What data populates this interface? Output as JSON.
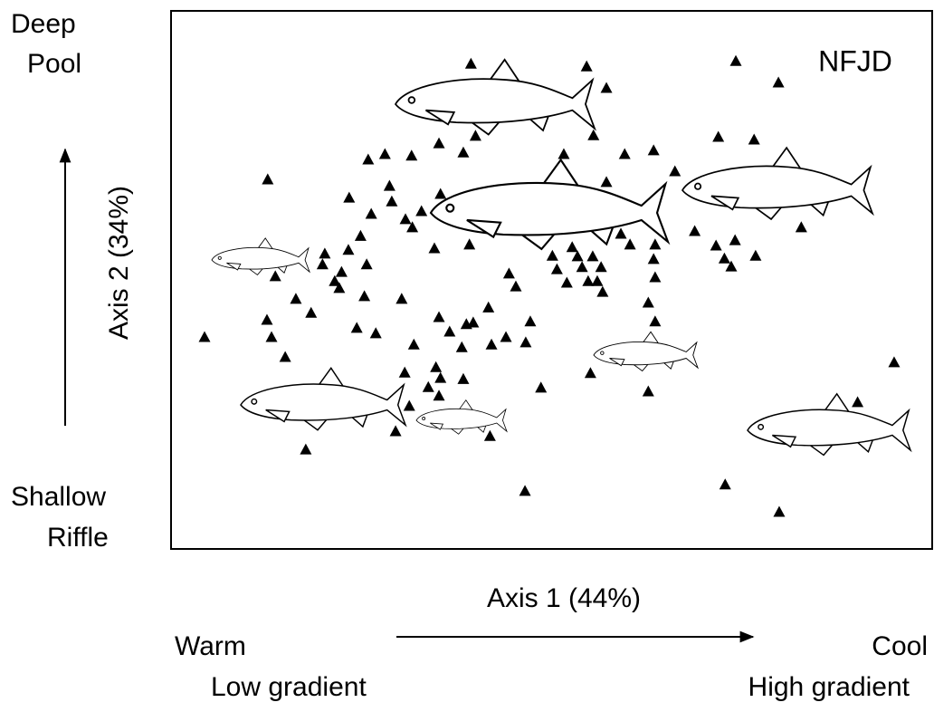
{
  "chart_data": {
    "type": "scatter",
    "annotation": "NFJD",
    "x_label": "Axis 1 (44%)",
    "y_label": "Axis 2 (34%)",
    "y_high_label": [
      "Deep",
      "Pool"
    ],
    "y_low_label": [
      "Shallow",
      "Riffle"
    ],
    "x_low_label": [
      "Warm",
      "Low gradient"
    ],
    "x_high_label": [
      "Cool",
      "High gradient"
    ],
    "xlim": [
      0,
      100
    ],
    "ylim": [
      0,
      100
    ],
    "color": "#000000",
    "x": [
      39.4,
      54.6,
      57.2,
      74.2,
      79.8,
      40.0,
      35.2,
      38.4,
      55.5,
      71.9,
      76.6,
      25.9,
      28.1,
      31.6,
      51.6,
      59.6,
      63.4,
      66.2,
      12.7,
      28.7,
      23.4,
      29.0,
      35.4,
      26.3,
      32.9,
      30.8,
      57.2,
      24.9,
      31.7,
      39.2,
      34.6,
      52.7,
      59.1,
      60.3,
      63.6,
      68.8,
      74.1,
      82.8,
      71.6,
      72.7,
      73.6,
      76.8,
      23.3,
      20.2,
      25.7,
      19.9,
      22.4,
      13.7,
      21.5,
      22.1,
      50.1,
      53.4,
      55.4,
      63.4,
      44.4,
      50.7,
      54.0,
      56.5,
      63.6,
      45.3,
      52.0,
      54.8,
      56.0,
      56.7,
      62.7,
      16.4,
      18.4,
      25.4,
      30.3,
      12.6,
      13.2,
      4.4,
      15.0,
      24.4,
      26.9,
      35.2,
      36.6,
      38.8,
      39.7,
      38.2,
      42.1,
      44.0,
      47.2,
      46.6,
      31.9,
      41.7,
      63.6,
      30.7,
      34.8,
      33.8,
      35.4,
      38.4,
      55.1,
      48.6,
      62.7,
      95.0,
      31.3,
      35.2,
      29.5,
      41.9,
      17.7,
      90.2,
      46.5,
      72.8,
      79.9
    ],
    "values": [
      90.2,
      89.7,
      85.7,
      90.7,
      86.7,
      76.8,
      75.4,
      73.7,
      76.9,
      76.6,
      76.1,
      72.4,
      73.4,
      73.1,
      73.4,
      73.4,
      74.1,
      70.2,
      68.7,
      67.5,
      65.3,
      64.6,
      66.0,
      62.3,
      62.8,
      61.3,
      68.2,
      58.2,
      59.8,
      56.6,
      55.9,
      56.1,
      58.6,
      56.6,
      56.6,
      59.1,
      57.4,
      59.8,
      56.4,
      54.0,
      52.5,
      54.5,
      55.6,
      54.9,
      52.9,
      52.9,
      51.5,
      50.7,
      49.8,
      48.5,
      54.5,
      54.4,
      54.4,
      53.9,
      51.2,
      52.0,
      52.4,
      52.4,
      50.5,
      48.8,
      49.5,
      49.8,
      49.8,
      47.8,
      45.8,
      46.5,
      43.9,
      47.0,
      46.5,
      42.6,
      39.4,
      39.4,
      35.7,
      41.1,
      40.1,
      43.1,
      40.4,
      41.8,
      42.1,
      37.5,
      38.0,
      39.4,
      42.3,
      38.4,
      38.0,
      44.9,
      42.3,
      32.8,
      33.8,
      30.1,
      31.8,
      31.6,
      32.7,
      30.0,
      29.3,
      34.7,
      26.6,
      28.5,
      21.9,
      21.0,
      18.5,
      27.3,
      10.8,
      12.0,
      6.9
    ]
  }
}
